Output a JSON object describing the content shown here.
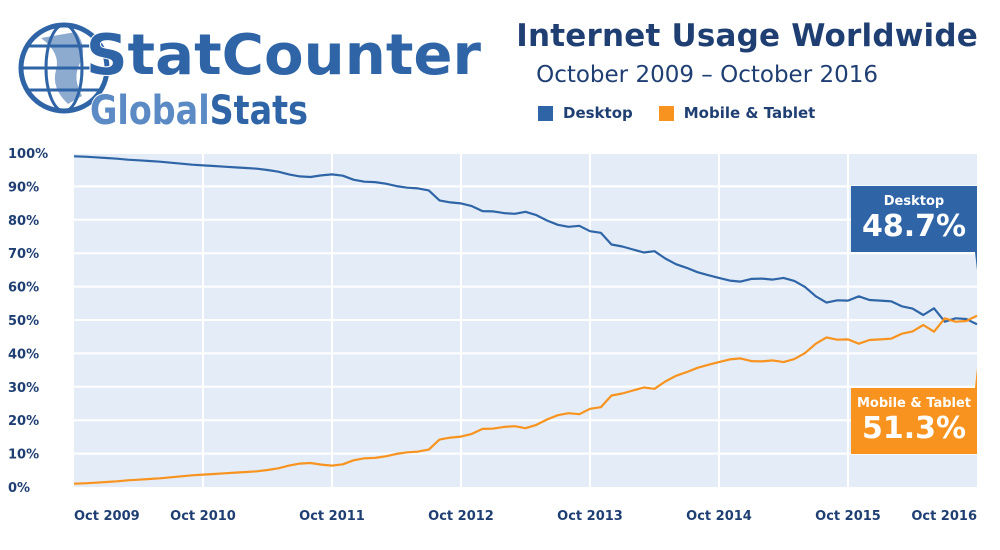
{
  "logo": {
    "brand_part1": "Stat",
    "brand_part2": "Counter",
    "sub_part1": "Global",
    "sub_part2": "Stats"
  },
  "colors": {
    "desktop": "#2f65a7",
    "mobile": "#f7931e",
    "plot_bg": "#e4edf7",
    "title": "#1f3f73"
  },
  "chart_data": {
    "type": "line",
    "title": "Internet Usage Worldwide",
    "subtitle": "October 2009 – October 2016",
    "xlabel": "",
    "ylabel": "",
    "ylim": [
      0,
      100
    ],
    "yticks": [
      "0%",
      "10%",
      "20%",
      "30%",
      "40%",
      "50%",
      "60%",
      "70%",
      "80%",
      "90%",
      "100%"
    ],
    "xticks": [
      {
        "label": "Oct 2009",
        "index": 0
      },
      {
        "label": "Oct 2010",
        "index": 12
      },
      {
        "label": "Oct 2011",
        "index": 24
      },
      {
        "label": "Oct 2012",
        "index": 36
      },
      {
        "label": "Oct 2013",
        "index": 48
      },
      {
        "label": "Oct 2014",
        "index": 60
      },
      {
        "label": "Oct 2015",
        "index": 72
      },
      {
        "label": "Oct 2016",
        "index": 84
      }
    ],
    "legend_position": "top",
    "grid": true,
    "series": [
      {
        "name": "Desktop",
        "final_label": "48.7%",
        "values": [
          99.0,
          98.9,
          98.7,
          98.5,
          98.3,
          98.0,
          97.8,
          97.6,
          97.4,
          97.1,
          96.8,
          96.5,
          96.3,
          96.1,
          95.9,
          95.7,
          95.5,
          95.3,
          94.9,
          94.4,
          93.6,
          93.0,
          92.8,
          93.3,
          93.6,
          93.2,
          92.0,
          91.4,
          91.3,
          90.8,
          90.1,
          89.6,
          89.4,
          88.8,
          85.8,
          85.2,
          84.9,
          84.1,
          82.6,
          82.5,
          82.0,
          81.8,
          82.4,
          81.4,
          79.8,
          78.5,
          77.9,
          78.2,
          76.6,
          76.1,
          72.6,
          72.0,
          71.1,
          70.2,
          70.6,
          68.4,
          66.7,
          65.6,
          64.3,
          63.4,
          62.6,
          61.8,
          61.5,
          62.3,
          62.4,
          62.1,
          62.6,
          61.7,
          59.9,
          57.1,
          55.2,
          55.9,
          55.8,
          57.1,
          56.0,
          55.8,
          55.6,
          54.1,
          53.4,
          51.5,
          53.5,
          49.5,
          50.5,
          50.3,
          48.7
        ],
        "color": "#2f65a7"
      },
      {
        "name": "Mobile & Tablet",
        "final_label": "51.3%",
        "values": [
          1.0,
          1.1,
          1.3,
          1.5,
          1.7,
          2.0,
          2.2,
          2.4,
          2.6,
          2.9,
          3.2,
          3.5,
          3.7,
          3.9,
          4.1,
          4.3,
          4.5,
          4.7,
          5.1,
          5.6,
          6.4,
          7.0,
          7.2,
          6.7,
          6.4,
          6.8,
          8.0,
          8.6,
          8.7,
          9.2,
          9.9,
          10.4,
          10.6,
          11.2,
          14.2,
          14.8,
          15.1,
          15.9,
          17.4,
          17.5,
          18.0,
          18.2,
          17.6,
          18.6,
          20.2,
          21.5,
          22.1,
          21.8,
          23.4,
          23.9,
          27.4,
          28.0,
          28.9,
          29.8,
          29.4,
          31.6,
          33.3,
          34.4,
          35.7,
          36.6,
          37.4,
          38.2,
          38.5,
          37.7,
          37.6,
          37.9,
          37.4,
          38.3,
          40.1,
          42.9,
          44.8,
          44.1,
          44.2,
          42.9,
          44.0,
          44.2,
          44.4,
          45.9,
          46.6,
          48.5,
          46.5,
          50.5,
          49.5,
          49.7,
          51.3
        ],
        "color": "#f7931e"
      }
    ]
  }
}
